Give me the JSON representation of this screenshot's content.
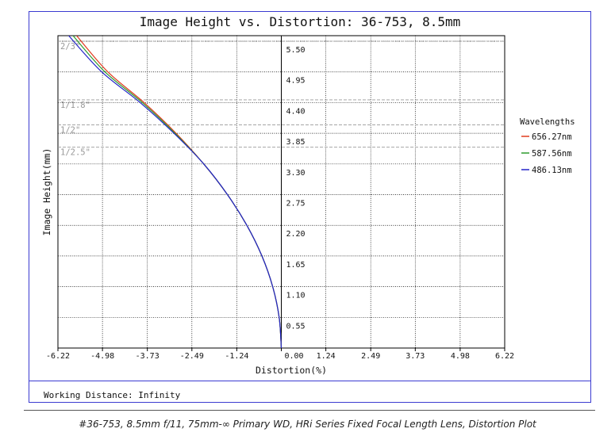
{
  "chart_data": {
    "type": "line",
    "title": "Image Height vs. Distortion: 36-753, 8.5mm",
    "xlabel": "Distortion(%)",
    "ylabel": "Image Height(mm)",
    "xlim": [
      -6.22,
      6.22
    ],
    "ylim": [
      0,
      5.6
    ],
    "x_ticks": [
      "-6.22",
      "-4.98",
      "-3.73",
      "-2.49",
      "-1.24",
      "0.00",
      "1.24",
      "2.49",
      "3.73",
      "4.98",
      "6.22"
    ],
    "y_ticks": [
      "0.55",
      "1.10",
      "1.65",
      "2.20",
      "2.75",
      "3.30",
      "3.85",
      "4.40",
      "4.95",
      "5.50"
    ],
    "grid": true,
    "sensor_lines": [
      {
        "label": "2/3\"",
        "y": 5.5
      },
      {
        "label": "1/1.8\"",
        "y": 4.45
      },
      {
        "label": "1/2\"",
        "y": 4.0
      },
      {
        "label": "1/2.5\"",
        "y": 3.6
      }
    ],
    "legend_title": "Wavelengths",
    "legend_placement": "right",
    "series": [
      {
        "name": "656.27nm",
        "color": "#e03a1e",
        "x": [
          0,
          -0.06,
          -0.24,
          -0.54,
          -0.96,
          -1.5,
          -2.16,
          -2.93,
          -3.82,
          -4.83,
          -5.7
        ],
        "y": [
          0,
          0.55,
          1.1,
          1.65,
          2.2,
          2.75,
          3.3,
          3.85,
          4.4,
          4.95,
          5.6
        ]
      },
      {
        "name": "587.56nm",
        "color": "#2e9a2e",
        "x": [
          0,
          -0.06,
          -0.24,
          -0.54,
          -0.96,
          -1.5,
          -2.16,
          -2.96,
          -3.87,
          -4.91,
          -5.8
        ],
        "y": [
          0,
          0.55,
          1.1,
          1.65,
          2.2,
          2.75,
          3.3,
          3.85,
          4.4,
          4.95,
          5.6
        ]
      },
      {
        "name": "486.13nm",
        "color": "#2424c8",
        "x": [
          0,
          -0.06,
          -0.24,
          -0.54,
          -0.96,
          -1.5,
          -2.16,
          -2.99,
          -3.93,
          -5.0,
          -5.92
        ],
        "y": [
          0,
          0.55,
          1.1,
          1.65,
          2.2,
          2.75,
          3.3,
          3.85,
          4.4,
          4.95,
          5.6
        ]
      }
    ]
  },
  "footer": {
    "working_distance": "Working Distance: Infinity"
  },
  "caption": "#36-753, 8.5mm f/11, 75mm-∞ Primary WD, HRi Series Fixed Focal Length Lens, Distortion Plot",
  "colors": {
    "frame": "#3b3bd1",
    "grid": "#000000",
    "sensor_line": "#999999"
  }
}
